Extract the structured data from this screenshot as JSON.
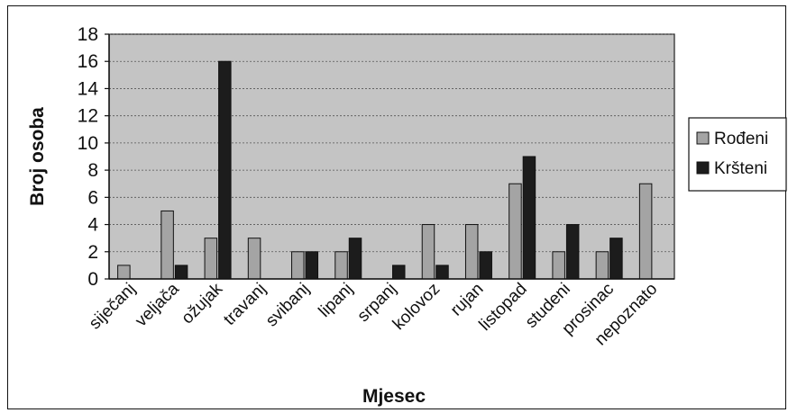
{
  "chart_data": {
    "type": "bar",
    "title": "",
    "xlabel": "Mjesec",
    "ylabel": "Broj osoba",
    "ylim": [
      0,
      18
    ],
    "yticks": [
      0,
      2,
      4,
      6,
      8,
      10,
      12,
      14,
      16,
      18
    ],
    "grid": true,
    "legend_position": "right",
    "categories": [
      "siječanj",
      "veljača",
      "ožujak",
      "travanj",
      "svibanj",
      "lipanj",
      "srpanj",
      "kolovoz",
      "rujan",
      "listopad",
      "studeni",
      "prosinac",
      "nepoznato"
    ],
    "series": [
      {
        "name": "Rođeni",
        "color": "#a4a4a4",
        "values": [
          1,
          5,
          3,
          3,
          2,
          2,
          0,
          4,
          4,
          7,
          2,
          2,
          7
        ]
      },
      {
        "name": "Kršteni",
        "color": "#1c1c1c",
        "values": [
          0,
          1,
          16,
          0,
          2,
          3,
          1,
          1,
          2,
          9,
          4,
          3,
          0
        ]
      }
    ],
    "plot_background": "#c4c4c4"
  }
}
